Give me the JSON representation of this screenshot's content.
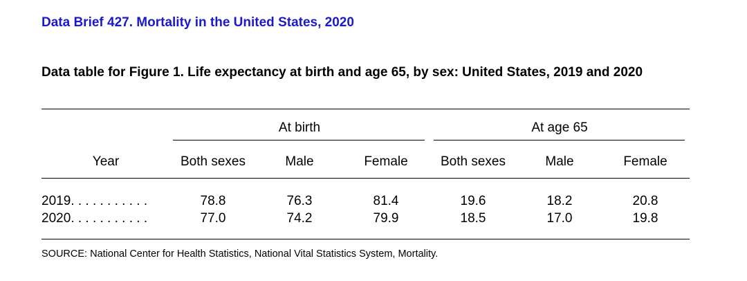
{
  "header": {
    "link_text": "Data Brief 427. Mortality in the United States, 2020",
    "link_color": "#1a1acc"
  },
  "table": {
    "title": "Data table for Figure 1. Life expectancy at birth and age 65, by sex: United States, 2019 and 2020",
    "group_headers": [
      "At birth",
      "At age 65"
    ],
    "year_header": "Year",
    "column_headers": [
      "Both sexes",
      "Male",
      "Female",
      "Both sexes",
      "Male",
      "Female"
    ],
    "rows": [
      {
        "year": "2019. . . . . . . . . . .",
        "values": [
          "78.8",
          "76.3",
          "81.4",
          "19.6",
          "18.2",
          "20.8"
        ]
      },
      {
        "year": "2020. . . . . . . . . . .",
        "values": [
          "77.0",
          "74.2",
          "79.9",
          "18.5",
          "17.0",
          "19.8"
        ]
      }
    ],
    "source": "SOURCE: National Center for Health Statistics, National Vital Statistics System, Mortality."
  }
}
